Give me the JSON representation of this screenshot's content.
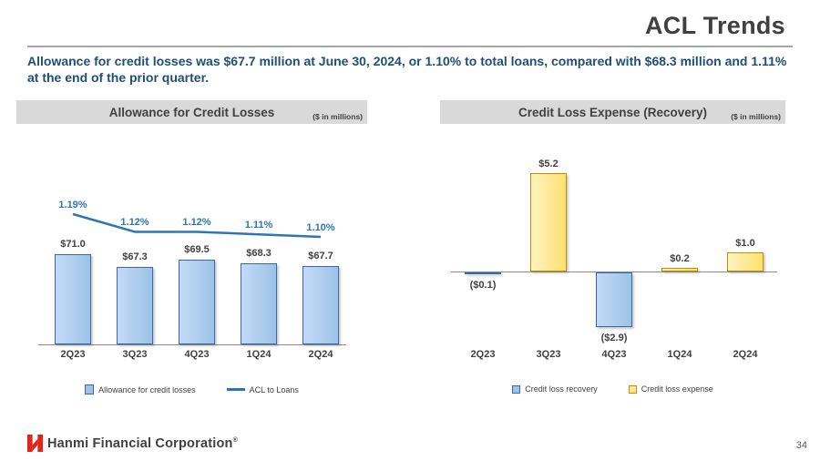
{
  "page": {
    "title": "ACL Trends",
    "subtitle": "Allowance for credit losses was $67.7 million at June 30, 2024, or 1.10% to total loans, compared with $68.3 million and 1.11% at the end of the prior quarter.",
    "footer_brand": "Hanmi Financial Corporation",
    "footer_reg": "®",
    "page_number": "34"
  },
  "colors": {
    "accent_blue_fill": "#9dc3e6",
    "accent_blue_border": "#3a66b0",
    "accent_yellow_fill": "#ffe699",
    "accent_yellow_border": "#bf9000",
    "line_blue": "#2e75b6",
    "subtitle_blue": "#1f4e79",
    "title_gray": "#404040",
    "header_bar_bg": "#d9d9d9",
    "brand_red": "#e1251b"
  },
  "charts": {
    "left": {
      "title": "Allowance for Credit Losses",
      "units": "($ in millions)",
      "legend": [
        {
          "label": "Allowance for credit losses",
          "marker": "bar"
        },
        {
          "label": "ACL to Loans",
          "marker": "line"
        }
      ]
    },
    "right": {
      "title": "Credit Loss Expense (Recovery)",
      "units": "($ in millions)",
      "legend": [
        {
          "label": "Credit loss recovery",
          "marker": "blue-square"
        },
        {
          "label": "Credit loss expense",
          "marker": "yellow-square"
        }
      ]
    }
  },
  "chart_data": [
    {
      "type": "bar",
      "title": "Allowance for Credit Losses",
      "units": "$ in millions",
      "categories": [
        "2Q23",
        "3Q23",
        "4Q23",
        "1Q24",
        "2Q24"
      ],
      "series": [
        {
          "name": "Allowance for credit losses",
          "type": "bar",
          "values": [
            71.0,
            67.3,
            69.5,
            68.3,
            67.7
          ],
          "labels": [
            "$71.0",
            "$67.3",
            "$69.5",
            "$68.3",
            "$67.7"
          ],
          "color": "#9dc3e6"
        },
        {
          "name": "ACL to Loans",
          "type": "line",
          "values": [
            1.19,
            1.12,
            1.12,
            1.11,
            1.1
          ],
          "labels": [
            "1.19%",
            "1.12%",
            "1.12%",
            "1.11%",
            "1.10%"
          ],
          "color": "#2e75b6"
        }
      ],
      "bar_axis": {
        "min": 45,
        "max": 76
      },
      "line_axis": {
        "min": 1.05,
        "max": 1.25
      },
      "grid": false,
      "legend_position": "bottom"
    },
    {
      "type": "bar",
      "title": "Credit Loss Expense (Recovery)",
      "units": "$ in millions",
      "categories": [
        "2Q23",
        "3Q23",
        "4Q23",
        "1Q24",
        "2Q24"
      ],
      "values": [
        -0.1,
        5.2,
        -2.9,
        0.2,
        1.0
      ],
      "labels": [
        "($0.1)",
        "$5.2",
        "($2.9)",
        "$0.2",
        "$1.0"
      ],
      "colors": {
        "positive": "#ffe699",
        "negative": "#9dc3e6"
      },
      "ylim": [
        -3.5,
        6.0
      ],
      "grid": false,
      "legend_position": "bottom"
    }
  ]
}
